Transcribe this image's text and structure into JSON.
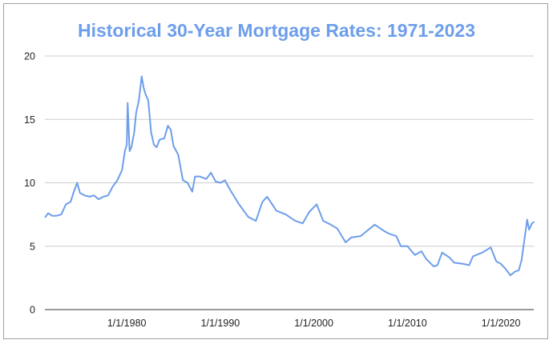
{
  "chart_data": {
    "type": "line",
    "title": "Historical 30-Year Mortgage Rates: 1971-2023",
    "xlabel": "",
    "ylabel": "",
    "ylim": [
      0,
      20
    ],
    "xlim": [
      1971.25,
      2023.5
    ],
    "grid": true,
    "legend": "none",
    "yticks": [
      0,
      5,
      10,
      15,
      20
    ],
    "xticks": [
      {
        "value": 1980,
        "label": "1/1/1980"
      },
      {
        "value": 1990,
        "label": "1/1/1990"
      },
      {
        "value": 2000,
        "label": "1/1/2000"
      },
      {
        "value": 2010,
        "label": "1/1/2010"
      },
      {
        "value": 2020,
        "label": "1/1/2020"
      }
    ],
    "series": [
      {
        "color": "#6d9eeb",
        "x": [
          1971.3,
          1971.6,
          1972.0,
          1972.5,
          1973.0,
          1973.5,
          1974.0,
          1974.3,
          1974.7,
          1975.0,
          1975.5,
          1976.0,
          1976.5,
          1977.0,
          1977.5,
          1978.0,
          1978.5,
          1979.0,
          1979.5,
          1979.8,
          1980.0,
          1980.1,
          1980.3,
          1980.5,
          1980.8,
          1981.0,
          1981.3,
          1981.6,
          1981.8,
          1982.0,
          1982.3,
          1982.6,
          1982.9,
          1983.2,
          1983.5,
          1984.0,
          1984.4,
          1984.7,
          1985.0,
          1985.5,
          1986.0,
          1986.5,
          1987.0,
          1987.3,
          1987.8,
          1988.5,
          1989.0,
          1989.5,
          1990.0,
          1990.5,
          1991.0,
          1992.0,
          1993.0,
          1993.8,
          1994.5,
          1995.0,
          1996.0,
          1997.0,
          1998.0,
          1998.8,
          1999.5,
          2000.3,
          2001.0,
          2001.8,
          2002.5,
          2003.4,
          2004.0,
          2005.0,
          2006.5,
          2007.5,
          2008.0,
          2008.8,
          2009.3,
          2010.0,
          2010.8,
          2011.5,
          2012.0,
          2012.8,
          2013.2,
          2013.7,
          2014.5,
          2015.0,
          2016.0,
          2016.6,
          2017.0,
          2018.0,
          2018.9,
          2019.5,
          2020.0,
          2020.5,
          2021.0,
          2021.5,
          2021.9,
          2022.2,
          2022.5,
          2022.8,
          2023.0,
          2023.3,
          2023.5
        ],
        "values": [
          7.3,
          7.6,
          7.4,
          7.4,
          7.5,
          8.3,
          8.5,
          9.2,
          10.0,
          9.2,
          9.0,
          8.9,
          9.0,
          8.7,
          8.9,
          9.0,
          9.7,
          10.2,
          11.0,
          12.5,
          13.0,
          16.3,
          12.5,
          12.8,
          14.0,
          15.5,
          16.5,
          18.4,
          17.5,
          17.0,
          16.5,
          14.0,
          13.0,
          12.8,
          13.4,
          13.5,
          14.5,
          14.2,
          12.9,
          12.2,
          10.2,
          10.0,
          9.3,
          10.5,
          10.5,
          10.3,
          10.8,
          10.1,
          10.0,
          10.2,
          9.5,
          8.3,
          7.3,
          7.0,
          8.5,
          8.9,
          7.8,
          7.5,
          7.0,
          6.8,
          7.7,
          8.3,
          7.0,
          6.7,
          6.4,
          5.3,
          5.7,
          5.8,
          6.7,
          6.2,
          6.0,
          5.8,
          5.0,
          5.0,
          4.3,
          4.6,
          4.0,
          3.4,
          3.5,
          4.5,
          4.1,
          3.7,
          3.6,
          3.5,
          4.2,
          4.5,
          4.9,
          3.8,
          3.6,
          3.2,
          2.7,
          3.0,
          3.1,
          3.9,
          5.5,
          7.1,
          6.3,
          6.8,
          6.9
        ]
      }
    ]
  }
}
